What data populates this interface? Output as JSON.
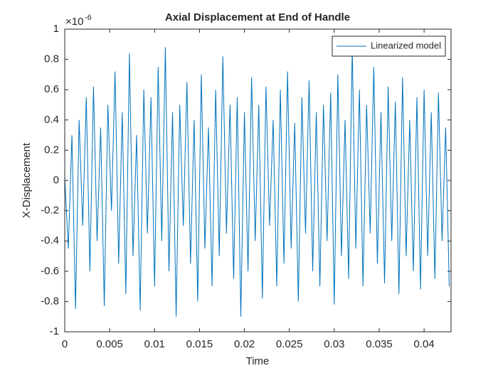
{
  "chart_data": {
    "type": "line",
    "title": "Axial Displacement at End of Handle",
    "x_label": "Time",
    "y_label": "X-Displacement",
    "y_exponent_base": "×10",
    "y_exponent": "-6",
    "xlim": [
      0,
      0.043
    ],
    "ylim": [
      -1,
      1
    ],
    "xticks": [
      0,
      0.005,
      0.01,
      0.015,
      0.02,
      0.025,
      0.03,
      0.035,
      0.04
    ],
    "yticks": [
      -1,
      -0.8,
      -0.6,
      -0.4,
      -0.2,
      0,
      0.2,
      0.4,
      0.6,
      0.8,
      1
    ],
    "legend": "northeast",
    "grid": false,
    "x": [
      0,
      0.0004,
      0.0008,
      0.0012,
      0.0016,
      0.002,
      0.0024,
      0.0028,
      0.0032,
      0.0036,
      0.004,
      0.0044,
      0.0048,
      0.0052,
      0.0056,
      0.006,
      0.0064,
      0.0068,
      0.0072,
      0.0076,
      0.008,
      0.0084,
      0.0088,
      0.0092,
      0.0096,
      0.01,
      0.0104,
      0.0108,
      0.0112,
      0.0116,
      0.012,
      0.0124,
      0.0128,
      0.0132,
      0.0136,
      0.014,
      0.0144,
      0.0148,
      0.0152,
      0.0156,
      0.016,
      0.0164,
      0.0168,
      0.0172,
      0.0176,
      0.018,
      0.0184,
      0.0188,
      0.0192,
      0.0196,
      0.02,
      0.0204,
      0.0208,
      0.0212,
      0.0216,
      0.022,
      0.0224,
      0.0228,
      0.0232,
      0.0236,
      0.024,
      0.0244,
      0.0248,
      0.0252,
      0.0256,
      0.026,
      0.0264,
      0.0268,
      0.0272,
      0.0276,
      0.028,
      0.0284,
      0.0288,
      0.0292,
      0.0296,
      0.03,
      0.0304,
      0.0308,
      0.0312,
      0.0316,
      0.032,
      0.0324,
      0.0328,
      0.0332,
      0.0336,
      0.034,
      0.0344,
      0.0348,
      0.0352,
      0.0356,
      0.036,
      0.0364,
      0.0368,
      0.0372,
      0.0376,
      0.038,
      0.0384,
      0.0388,
      0.0392,
      0.0396,
      0.04,
      0.0404,
      0.0408,
      0.0412,
      0.0416,
      0.042,
      0.0424,
      0.0428
    ],
    "series": [
      {
        "name": "Linearized model",
        "color": "#0072bd",
        "values": [
          0.02,
          -0.45,
          0.3,
          -0.85,
          0.4,
          -0.3,
          0.55,
          -0.6,
          0.62,
          -0.4,
          0.35,
          -0.83,
          0.5,
          -0.2,
          0.72,
          -0.55,
          0.45,
          -0.75,
          0.84,
          -0.5,
          0.3,
          -0.86,
          0.6,
          -0.35,
          0.55,
          -0.7,
          0.75,
          -0.4,
          0.88,
          -0.6,
          0.45,
          -0.9,
          0.5,
          -0.3,
          0.65,
          -0.55,
          0.4,
          -0.8,
          0.7,
          -0.45,
          0.35,
          -0.7,
          0.6,
          -0.5,
          0.82,
          -0.35,
          0.5,
          -0.65,
          0.55,
          -0.9,
          0.45,
          -0.6,
          0.68,
          -0.4,
          0.5,
          -0.78,
          0.62,
          -0.3,
          0.4,
          -0.7,
          0.6,
          -0.55,
          0.72,
          -0.45,
          0.38,
          -0.8,
          0.55,
          -0.35,
          0.66,
          -0.6,
          0.45,
          -0.7,
          0.5,
          -0.4,
          0.58,
          -0.82,
          0.7,
          -0.5,
          0.4,
          -0.65,
          0.88,
          -0.45,
          0.6,
          -0.7,
          0.5,
          -0.35,
          0.75,
          -0.55,
          0.45,
          -0.68,
          0.62,
          -0.4,
          0.52,
          -0.75,
          0.68,
          -0.5,
          0.4,
          -0.6,
          0.55,
          -0.72,
          0.6,
          -0.5,
          0.45,
          -0.65,
          0.58,
          -0.4,
          0.35,
          -0.7
        ]
      }
    ]
  }
}
